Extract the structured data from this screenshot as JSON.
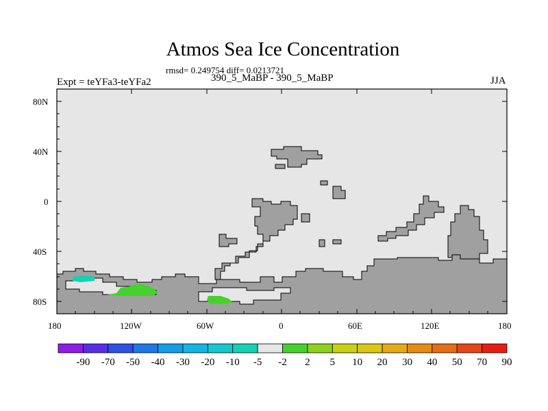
{
  "title": "Atmos Sea Ice Concentration",
  "stats": "rmsd= 0.249754 diff= 0.0213721",
  "experiment": "Expt = teYFa3-teYFa2",
  "period": "390_5_MaBP - 390_5_MaBP",
  "season": "JJA",
  "map": {
    "lon_range": [
      -180,
      180
    ],
    "lat_range": [
      -90,
      90
    ],
    "lat_ticks": [
      "80N",
      "40N",
      "0",
      "40S",
      "80S"
    ],
    "lon_ticks": [
      "180",
      "120W",
      "60W",
      "0",
      "60E",
      "120E",
      "180"
    ],
    "ocean_color": "#e6e6e6",
    "land_color": "#a0a0a0"
  },
  "colorbar": {
    "labels": [
      "-90",
      "-70",
      "-50",
      "-40",
      "-30",
      "-20",
      "-10",
      "-5",
      "-2",
      "2",
      "5",
      "10",
      "20",
      "30",
      "40",
      "50",
      "70",
      "90"
    ],
    "colors": [
      "#8c1ee6",
      "#5a2de6",
      "#2d50e6",
      "#1e78e6",
      "#149ee6",
      "#14b4e6",
      "#14c8d2",
      "#14d2b4",
      "#e6e6e6",
      "#46d22d",
      "#8cd21e",
      "#c8d214",
      "#dcc814",
      "#e6aa14",
      "#e68c14",
      "#e66e14",
      "#e64614",
      "#e61e14"
    ]
  }
}
